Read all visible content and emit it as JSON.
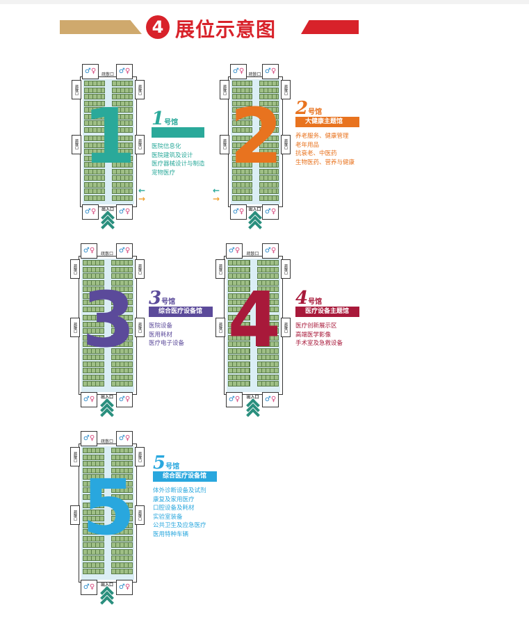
{
  "header": {
    "number": "4",
    "title": "展位示意图",
    "colors": {
      "left_band": "#cfa96d",
      "right_band": "#d8222a"
    }
  },
  "labels": {
    "top_exit": "疏散口",
    "side_exit": "疏散口",
    "entrance": "出入口",
    "hao": "号馆"
  },
  "halls": [
    {
      "number": "1",
      "subtitle": "",
      "color": "#2aa99a",
      "items": [
        "医院信息化",
        "医院建筑及设计",
        "医疗器械设计与制造",
        "宠物医疗"
      ]
    },
    {
      "number": "2",
      "subtitle": "大健康主题馆",
      "color": "#e8731f",
      "items": [
        "养老服务、健康管理",
        "老年用品",
        "抗衰老、中医药",
        "生物医药、营养与健康"
      ]
    },
    {
      "number": "3",
      "subtitle": "综合医疗设备馆",
      "color": "#5b4a9a",
      "items": [
        "医院设备",
        "医用耗材",
        "医疗电子设备"
      ]
    },
    {
      "number": "4",
      "subtitle": "医疗设备主题馆",
      "color": "#a8193a",
      "items": [
        "医疗创新展示区",
        "高端医学影像",
        "手术室及急救设备"
      ]
    },
    {
      "number": "5",
      "subtitle": "综合医疗设备馆",
      "color": "#29a7de",
      "items": [
        "体外诊断设备及试剂",
        "康复及家用医疗",
        "口腔设备及耗材",
        "实验室装备",
        "公共卫生及应急医疗",
        "医用特种车辆"
      ]
    }
  ]
}
